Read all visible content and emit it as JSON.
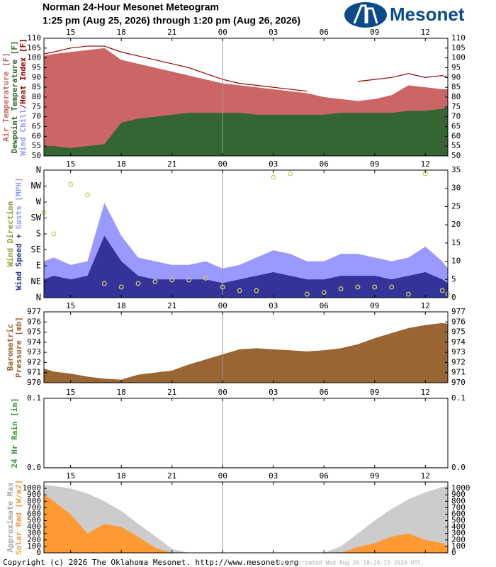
{
  "header": {
    "title": "Norman 24-Hour Mesonet Meteogram",
    "subtitle": "1:25 pm (Aug 25, 2026) through 1:20 pm (Aug 26, 2026)",
    "logo": "Mesonet"
  },
  "footer": {
    "copyright": "Copyright (c) 2026 The Oklahoma Mesonet. http://www.mesonet.org",
    "created": "Image created Wed Aug 26 18:26:15 2026 UTC."
  },
  "chart_data": [
    {
      "type": "area",
      "ylabel": [
        [
          {
            "text": "Air Temperature [F]",
            "color": "#cc6666"
          }
        ],
        [
          {
            "text": "Dewpoint Temperature [F]",
            "color": "#336633"
          }
        ],
        [
          {
            "text": "Wind Chill",
            "color": "#9999ff"
          },
          {
            "text": "/Heat Index [F]",
            "color": "#990000"
          }
        ]
      ],
      "x": [
        13.42,
        14,
        15,
        16,
        17,
        18,
        19,
        20,
        21,
        22,
        23,
        24,
        25,
        26,
        27,
        28,
        29,
        30,
        31,
        32,
        33,
        34,
        35,
        36,
        37,
        37.33
      ],
      "xlim": [
        13.42,
        37.33
      ],
      "vline": 24,
      "xticks": [
        {
          "value": 15,
          "label": "15"
        },
        {
          "value": 18,
          "label": "18"
        },
        {
          "value": 21,
          "label": "21"
        },
        {
          "value": 24,
          "label": "00"
        },
        {
          "value": 27,
          "label": "03"
        },
        {
          "value": 30,
          "label": "06"
        },
        {
          "value": 33,
          "label": "09"
        },
        {
          "value": 36,
          "label": "12"
        }
      ],
      "ylim": [
        50,
        110
      ],
      "yticks": [
        50,
        55,
        60,
        65,
        70,
        75,
        80,
        85,
        90,
        95,
        100,
        105,
        110
      ],
      "series": [
        {
          "name": "Air Temperature",
          "type": "area",
          "color": "#cc6666",
          "values": [
            101,
            102,
            103,
            104,
            105,
            99,
            97,
            95,
            93,
            91,
            89,
            87,
            86,
            85,
            84,
            83,
            82,
            80,
            79,
            78,
            79,
            81,
            86,
            85,
            84,
            84
          ]
        },
        {
          "name": "Dewpoint Temperature",
          "type": "area",
          "color": "#336633",
          "values": [
            55,
            55,
            54,
            55,
            56,
            67,
            69,
            70,
            71,
            72,
            72,
            72,
            72,
            71,
            71,
            71,
            71,
            71,
            72,
            72,
            72,
            72,
            73,
            73,
            74,
            75
          ]
        },
        {
          "name": "Heat Index",
          "type": "line",
          "color": "#990000",
          "values": [
            102,
            103,
            105,
            106,
            106,
            103,
            101,
            99,
            97,
            95,
            92,
            89,
            87,
            86,
            85,
            84,
            83,
            null,
            null,
            88,
            89,
            90,
            92,
            90,
            91,
            90
          ]
        }
      ]
    },
    {
      "type": "area",
      "ylabel": [
        [
          {
            "text": "Wind Direction",
            "color": "#999933"
          }
        ],
        [
          {
            "text": "Wind Speed",
            "color": "#333399"
          },
          {
            "text": " + ",
            "color": "#333399"
          },
          {
            "text": "Gusts [MPH]",
            "color": "#9999ff"
          }
        ]
      ],
      "x": [
        13.42,
        14,
        15,
        16,
        17,
        18,
        19,
        20,
        21,
        22,
        23,
        24,
        25,
        26,
        27,
        28,
        29,
        30,
        31,
        32,
        33,
        34,
        35,
        36,
        37,
        37.33
      ],
      "xlim": [
        13.42,
        37.33
      ],
      "vline": 24,
      "xticks": [
        {
          "value": 15,
          "label": "15"
        },
        {
          "value": 18,
          "label": "18"
        },
        {
          "value": 21,
          "label": "21"
        },
        {
          "value": 24,
          "label": "00"
        },
        {
          "value": 27,
          "label": "03"
        },
        {
          "value": 30,
          "label": "06"
        },
        {
          "value": 33,
          "label": "09"
        },
        {
          "value": 36,
          "label": "12"
        }
      ],
      "ylim": [
        0,
        35
      ],
      "yticks": [
        0,
        5,
        10,
        15,
        20,
        25,
        30,
        35
      ],
      "y2lim": [
        0,
        360
      ],
      "y2ticks": [
        {
          "value": 0,
          "label": "N"
        },
        {
          "value": 45,
          "label": "NE"
        },
        {
          "value": 90,
          "label": "E"
        },
        {
          "value": 135,
          "label": "SE"
        },
        {
          "value": 180,
          "label": "S"
        },
        {
          "value": 225,
          "label": "SW"
        },
        {
          "value": 270,
          "label": "W"
        },
        {
          "value": 315,
          "label": "NW"
        },
        {
          "value": 360,
          "label": "N"
        }
      ],
      "series": [
        {
          "name": "Gusts",
          "type": "area",
          "color": "#9999ff",
          "values": [
            10,
            11,
            9,
            10,
            26,
            17,
            11,
            10,
            9,
            9,
            10,
            8,
            9,
            11,
            13,
            12,
            10,
            10,
            12,
            12,
            11,
            10,
            11,
            14,
            10,
            8
          ]
        },
        {
          "name": "Wind Speed",
          "type": "area",
          "color": "#333399",
          "values": [
            5,
            6,
            5,
            6,
            17,
            10,
            6,
            5,
            5,
            5,
            5,
            4,
            5,
            6,
            7,
            6,
            5,
            5,
            6,
            6,
            6,
            5,
            6,
            7,
            5,
            4
          ]
        },
        {
          "name": "Wind Direction",
          "type": "scatter",
          "axis": "y2",
          "color": "#cccc66",
          "values": [
            240,
            180,
            320,
            290,
            40,
            30,
            40,
            45,
            50,
            50,
            55,
            30,
            20,
            20,
            340,
            350,
            10,
            15,
            25,
            30,
            30,
            30,
            10,
            350,
            20,
            10
          ]
        }
      ]
    },
    {
      "type": "area",
      "ylabel": [
        [
          {
            "text": "Barometric",
            "color": "#996633"
          }
        ],
        [
          {
            "text": "Pressure [mb]",
            "color": "#996633"
          }
        ]
      ],
      "x": [
        13.42,
        14,
        15,
        16,
        17,
        18,
        19,
        20,
        21,
        22,
        23,
        24,
        25,
        26,
        27,
        28,
        29,
        30,
        31,
        32,
        33,
        34,
        35,
        36,
        37,
        37.33
      ],
      "xlim": [
        13.42,
        37.33
      ],
      "vline": 24,
      "xticks": [
        {
          "value": 15,
          "label": "15"
        },
        {
          "value": 18,
          "label": "18"
        },
        {
          "value": 21,
          "label": "21"
        },
        {
          "value": 24,
          "label": "00"
        },
        {
          "value": 27,
          "label": "03"
        },
        {
          "value": 30,
          "label": "06"
        },
        {
          "value": 33,
          "label": "09"
        },
        {
          "value": 36,
          "label": "12"
        }
      ],
      "ylim": [
        970,
        977
      ],
      "yticks": [
        970,
        971,
        972,
        973,
        974,
        975,
        976,
        977
      ],
      "series": [
        {
          "name": "Barometric Pressure",
          "type": "area",
          "color": "#996633",
          "values": [
            971.4,
            971.1,
            970.9,
            970.6,
            970.4,
            970.3,
            970.8,
            971,
            971.2,
            971.8,
            972.3,
            972.8,
            973.3,
            973.4,
            973.3,
            973.2,
            973.1,
            973.2,
            973.4,
            973.8,
            974.4,
            974.9,
            975.4,
            975.7,
            975.9,
            975.8
          ]
        }
      ]
    },
    {
      "type": "line",
      "ylabel": [
        [
          {
            "text": "24 Hr Rain [in]",
            "color": "#339933"
          }
        ]
      ],
      "x": [
        13.42,
        14,
        15,
        16,
        17,
        18,
        19,
        20,
        21,
        22,
        23,
        24,
        25,
        26,
        27,
        28,
        29,
        30,
        31,
        32,
        33,
        34,
        35,
        36,
        37,
        37.33
      ],
      "xlim": [
        13.42,
        37.33
      ],
      "vline": 24,
      "xticks": [
        {
          "value": 15,
          "label": "15"
        },
        {
          "value": 18,
          "label": "18"
        },
        {
          "value": 21,
          "label": "21"
        },
        {
          "value": 24,
          "label": "00"
        },
        {
          "value": 27,
          "label": "03"
        },
        {
          "value": 30,
          "label": "06"
        },
        {
          "value": 33,
          "label": "09"
        },
        {
          "value": 36,
          "label": "12"
        }
      ],
      "ylim": [
        0,
        0.1
      ],
      "yticks": [
        {
          "value": 0,
          "label": "0.0"
        },
        0.1
      ],
      "series": [
        {
          "name": "24 Hr Rain",
          "type": "line",
          "color": "#339933",
          "values": [
            0,
            0,
            0,
            0,
            0,
            0,
            0,
            0,
            0,
            0,
            0,
            0,
            0,
            0,
            0,
            0,
            0,
            0,
            0,
            0,
            0,
            0,
            0,
            0,
            0,
            0
          ]
        }
      ]
    },
    {
      "type": "area",
      "ylabel": [
        [
          {
            "text": "Approximate Max",
            "color": "#aaaaaa"
          }
        ],
        [
          {
            "text": "Solar Rad [W/m2]",
            "color": "#ff9933"
          }
        ]
      ],
      "x": [
        13.42,
        14,
        15,
        16,
        17,
        18,
        19,
        20,
        21,
        22,
        23,
        24,
        25,
        26,
        27,
        28,
        29,
        30,
        31,
        32,
        33,
        34,
        35,
        36,
        37,
        37.33
      ],
      "xlim": [
        13.42,
        37.33
      ],
      "vline": 24,
      "xticks": [
        {
          "value": 15,
          "label": "15"
        },
        {
          "value": 18,
          "label": "18"
        },
        {
          "value": 21,
          "label": "21"
        },
        {
          "value": 24,
          "label": "00"
        },
        {
          "value": 27,
          "label": "03"
        },
        {
          "value": 30,
          "label": "06"
        },
        {
          "value": 33,
          "label": "09"
        },
        {
          "value": 36,
          "label": "12"
        }
      ],
      "ylim": [
        0,
        1100
      ],
      "yticks": [
        0,
        100,
        200,
        300,
        400,
        500,
        600,
        700,
        800,
        900,
        1000
      ],
      "series": [
        {
          "name": "Approximate Max",
          "type": "area",
          "color": "#cccccc",
          "values": [
            1050,
            1040,
            1000,
            920,
            800,
            650,
            450,
            260,
            60,
            0,
            0,
            0,
            0,
            0,
            0,
            0,
            0,
            0,
            100,
            300,
            500,
            680,
            830,
            940,
            1020,
            1040
          ]
        },
        {
          "name": "Solar Rad",
          "type": "area",
          "color": "#ff9933",
          "values": [
            900,
            800,
            600,
            300,
            450,
            400,
            250,
            80,
            0,
            0,
            0,
            0,
            0,
            0,
            0,
            0,
            0,
            0,
            0,
            90,
            150,
            250,
            300,
            200,
            150,
            100
          ]
        }
      ]
    }
  ]
}
